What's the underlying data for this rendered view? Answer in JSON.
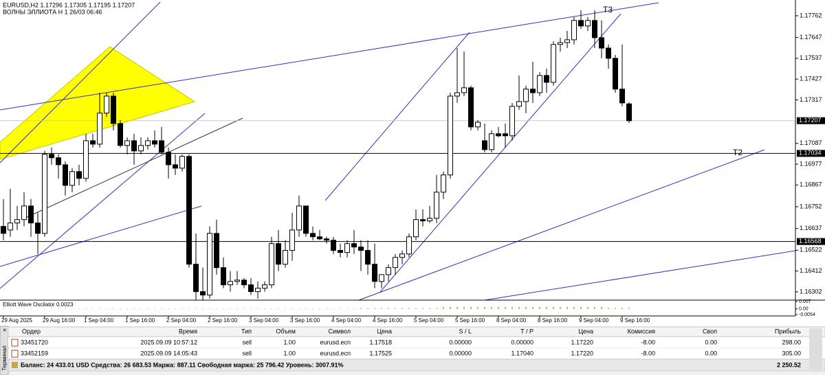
{
  "chart_data": {
    "type": "candlestick",
    "symbol_line": "EURUSD,H2  1.17296 1.17305 1.17195 1.17207",
    "indicator_line": "ВОЛНЫ ЭЛЛИОТА Н 1 26/03 06:46",
    "categories": [
      "29 Aug 2025",
      null,
      null,
      null,
      null,
      null,
      "29 Aug 16:00",
      null,
      null,
      null,
      null,
      null,
      "1 Sep 04:00",
      null,
      null,
      null,
      null,
      null,
      "1 Sep 16:00",
      null,
      null,
      null,
      null,
      null,
      "2 Sep 04:00",
      null,
      null,
      null,
      null,
      null,
      "2 Sep 16:00",
      null,
      null,
      null,
      null,
      null,
      "3 Sep 04:00",
      null,
      null,
      null,
      null,
      null,
      "3 Sep 16:00",
      null,
      null,
      null,
      null,
      null,
      "4 Sep 04:00",
      null,
      null,
      null,
      null,
      null,
      "4 Sep 16:00",
      null,
      null,
      null,
      null,
      null,
      "5 Sep 04:00",
      null,
      null,
      null,
      null,
      null,
      "5 Sep 16:00",
      null,
      null,
      null,
      null,
      null,
      "8 Sep 04:00",
      null,
      null,
      null,
      null,
      null,
      "8 Sep 16:00",
      null,
      null,
      null,
      null,
      null,
      "9 Sep 04:00",
      null,
      null,
      null,
      null,
      null,
      "9 Sep 16:00",
      null
    ],
    "open": [
      1.16648,
      1.16629,
      1.16666,
      1.16684,
      1.16756,
      1.16666,
      1.16611,
      1.17029,
      1.17011,
      1.16974,
      1.16865,
      1.16938,
      1.16902,
      1.17101,
      1.17083,
      1.17247,
      1.17337,
      1.17192,
      1.17076,
      1.17101,
      1.17047,
      1.17076,
      1.17101,
      1.17101,
      1.1704,
      1.16974,
      1.16956,
      1.17018,
      1.16448,
      1.16303,
      1.16285,
      1.16611,
      1.1643,
      1.16339,
      1.16357,
      1.16364,
      1.16339,
      1.16303,
      1.16321,
      1.16339,
      1.16557,
      1.16448,
      1.16521,
      1.16629,
      1.16756,
      1.16611,
      1.16593,
      1.16582,
      1.16575,
      1.16521,
      1.1651,
      1.16557,
      1.16539,
      1.16521,
      1.16448,
      1.16357,
      1.16393,
      1.1643,
      1.16484,
      1.16502,
      1.16593,
      1.16684,
      1.16677,
      1.16691,
      1.16829,
      1.1692,
      1.17337,
      1.17355,
      1.17381,
      1.17174,
      1.17101,
      1.17054,
      1.17138,
      1.17138,
      1.17127,
      1.17283,
      1.17308,
      1.17374,
      1.17355,
      1.17446,
      1.1741,
      1.1761,
      1.1762,
      1.17635,
      1.17737,
      1.17708,
      1.17737,
      1.17646,
      1.17591,
      1.17537,
      1.17374,
      1.17296
    ],
    "high": [
      1.16793,
      1.16847,
      1.16756,
      1.16829,
      1.16793,
      1.1672,
      1.17047,
      1.17065,
      1.17029,
      1.16992,
      1.16956,
      1.16974,
      1.17138,
      1.17138,
      1.17355,
      1.17355,
      1.17355,
      1.1721,
      1.17119,
      1.17138,
      1.17119,
      1.17119,
      1.17156,
      1.17174,
      1.17065,
      1.17029,
      1.17029,
      1.17029,
      1.16611,
      1.1643,
      1.16648,
      1.16684,
      1.16484,
      1.16412,
      1.16412,
      1.16375,
      1.16375,
      1.16357,
      1.16357,
      1.16593,
      1.16629,
      1.16575,
      1.1672,
      1.16811,
      1.16756,
      1.16648,
      1.16629,
      1.16593,
      1.16593,
      1.16557,
      1.16575,
      1.16629,
      1.16575,
      1.16575,
      1.16557,
      1.16393,
      1.16448,
      1.16502,
      1.16521,
      1.16611,
      1.16738,
      1.16738,
      1.16756,
      1.1692,
      1.16938,
      1.17355,
      1.17591,
      1.17573,
      1.17392,
      1.1721,
      1.17192,
      1.17156,
      1.17174,
      1.17192,
      1.17301,
      1.17446,
      1.17392,
      1.17519,
      1.17464,
      1.17482,
      1.17628,
      1.17646,
      1.17682,
      1.17755,
      1.17791,
      1.17755,
      1.17791,
      1.17737,
      1.1761,
      1.17555,
      1.1761,
      1.17305
    ],
    "low": [
      1.16575,
      1.16593,
      1.16629,
      1.16648,
      1.16593,
      1.16502,
      1.16593,
      1.16974,
      1.16902,
      1.16811,
      1.16829,
      1.16865,
      1.16884,
      1.17065,
      1.17065,
      1.17228,
      1.17156,
      1.17065,
      1.17029,
      1.16974,
      1.17029,
      1.17054,
      1.17065,
      1.17029,
      1.16902,
      1.1692,
      1.16938,
      1.1643,
      1.16259,
      1.16259,
      1.16266,
      1.16393,
      1.16321,
      1.16303,
      1.16339,
      1.16321,
      1.16285,
      1.16266,
      1.16303,
      1.16321,
      1.16412,
      1.1643,
      1.16466,
      1.16593,
      1.16593,
      1.16575,
      1.16575,
      1.16557,
      1.16502,
      1.16484,
      1.16484,
      1.16502,
      1.16412,
      1.16393,
      1.16321,
      1.16321,
      1.16357,
      1.16393,
      1.16448,
      1.16484,
      1.16575,
      1.16648,
      1.16666,
      1.16666,
      1.16793,
      1.16902,
      1.17301,
      1.17337,
      1.17156,
      1.17156,
      1.1704,
      1.1704,
      1.17119,
      1.17065,
      1.17101,
      1.17265,
      1.17247,
      1.17301,
      1.17337,
      1.17355,
      1.17392,
      1.17573,
      1.17591,
      1.1761,
      1.17693,
      1.17682,
      1.17591,
      1.17537,
      1.17482,
      1.17355,
      1.17283,
      1.17195
    ],
    "close": [
      1.16611,
      1.16666,
      1.16684,
      1.16756,
      1.16666,
      1.16611,
      1.17029,
      1.17011,
      1.16974,
      1.16865,
      1.16938,
      1.16902,
      1.17101,
      1.17083,
      1.17247,
      1.17337,
      1.17192,
      1.17076,
      1.17101,
      1.17047,
      1.17076,
      1.17101,
      1.17083,
      1.1704,
      1.16974,
      1.16956,
      1.17018,
      1.16448,
      1.16303,
      1.16285,
      1.16611,
      1.1643,
      1.16339,
      1.16357,
      1.16364,
      1.16339,
      1.16303,
      1.16321,
      1.16339,
      1.16557,
      1.16448,
      1.16521,
      1.16629,
      1.16756,
      1.16611,
      1.16593,
      1.16582,
      1.16575,
      1.16521,
      1.1651,
      1.16557,
      1.16539,
      1.16521,
      1.16448,
      1.16357,
      1.16393,
      1.1643,
      1.16484,
      1.16502,
      1.16593,
      1.16684,
      1.16677,
      1.16691,
      1.16829,
      1.1692,
      1.17337,
      1.17355,
      1.17381,
      1.17174,
      1.17199,
      1.17054,
      1.17138,
      1.17127,
      1.17127,
      1.17283,
      1.17308,
      1.17374,
      1.17355,
      1.17446,
      1.1741,
      1.1761,
      1.1762,
      1.17635,
      1.17737,
      1.17708,
      1.17737,
      1.17646,
      1.17591,
      1.17537,
      1.17374,
      1.17301,
      1.17207
    ],
    "up_color": "#ffffff",
    "down_color": "#000000",
    "ylim": [
      1.16258,
      1.17838
    ],
    "yticks": [
      1.17762,
      1.17647,
      1.17537,
      1.17427,
      1.17317,
      1.17087,
      1.16977,
      1.16867,
      1.16752,
      1.16637,
      1.16522,
      1.16412,
      1.16302
    ],
    "levels": [
      1.17034,
      1.16568
    ],
    "last_price": 1.17207,
    "annotations": [
      "T3",
      "T2"
    ],
    "oscillator": {
      "label": "Elliott Wave Oscilator 0.0023",
      "color": "#c8a838",
      "ylim": [
        -0.0054,
        0.007
      ],
      "yticks": [
        0.007,
        {
          "value": 0,
          "label": "0.00"
        },
        -0.0054
      ],
      "values": [
        0.0003,
        0.0003,
        0.0003,
        0.0003,
        0.0003,
        0.0003,
        0.0003,
        0.0003,
        0.0003,
        0.0003,
        0.0003,
        0.0003,
        0.0003,
        0.0003,
        0.0003,
        0.0003,
        0.0003,
        0.0003,
        0.0003,
        0.0003,
        0.0003,
        0.0003,
        0.0003,
        0.0003,
        0.0003,
        0.0003,
        0.0003,
        0.0003,
        0.0003,
        0.0003,
        0.0003,
        0.0003,
        0.0003,
        0.0003,
        0.0003,
        0.0003,
        0.0003,
        0.0003,
        0.0003,
        0.0003,
        0.0003,
        0.0003,
        0.0003,
        0.0003,
        0.0003,
        0.0003,
        0.0003,
        0.0003,
        0.0003,
        0.0003,
        0.0003,
        0.0003,
        0.0008,
        0.0008,
        0.0008,
        0.0008,
        0.0008,
        0.0008,
        0.0008,
        0.0008,
        0.0008,
        0.0008,
        0.0008,
        0.0008,
        0.0018,
        0.0018,
        0.0018,
        0.0018,
        0.0018,
        0.0018,
        0.0018,
        0.0018,
        0.0018,
        0.0018,
        0.0018,
        0.0018,
        0.0018,
        0.0018,
        0.0018,
        0.0018,
        0.0018,
        0.0018,
        0.0018,
        0.0018,
        0.0018,
        0.0018,
        0.0018,
        0.0018,
        0.001,
        0.001,
        0.001,
        0.001
      ]
    }
  },
  "terminal": {
    "tab": "Терминал",
    "columns": [
      "Ордер",
      "Время",
      "Тип",
      "Объем",
      "Символ",
      "Цена",
      "S / L",
      "T / P",
      "Цена",
      "Комиссия",
      "Своп",
      "Прибыль"
    ],
    "rows": [
      [
        "33451720",
        "2025.09.09 10:57:12",
        "sell",
        "1.00",
        "eurusd.ecn",
        "1.17518",
        "0.00000",
        "0.00000",
        "1.17220",
        "-8.00",
        "0.00",
        "298.00"
      ],
      [
        "33452159",
        "2025.09.09 14:05:43",
        "sell",
        "1.00",
        "eurusd.ecn",
        "1.17525",
        "0.00000",
        "1.17040",
        "1.17220",
        "-8.00",
        "0.00",
        "305.00"
      ]
    ],
    "balance": "Баланс: 24 433.01 USD  Средства: 26 683.53  Маржа: 887.11  Свободная маржа: 25 796.42  Уровень: 3007.91%",
    "total": "2 250.52"
  }
}
